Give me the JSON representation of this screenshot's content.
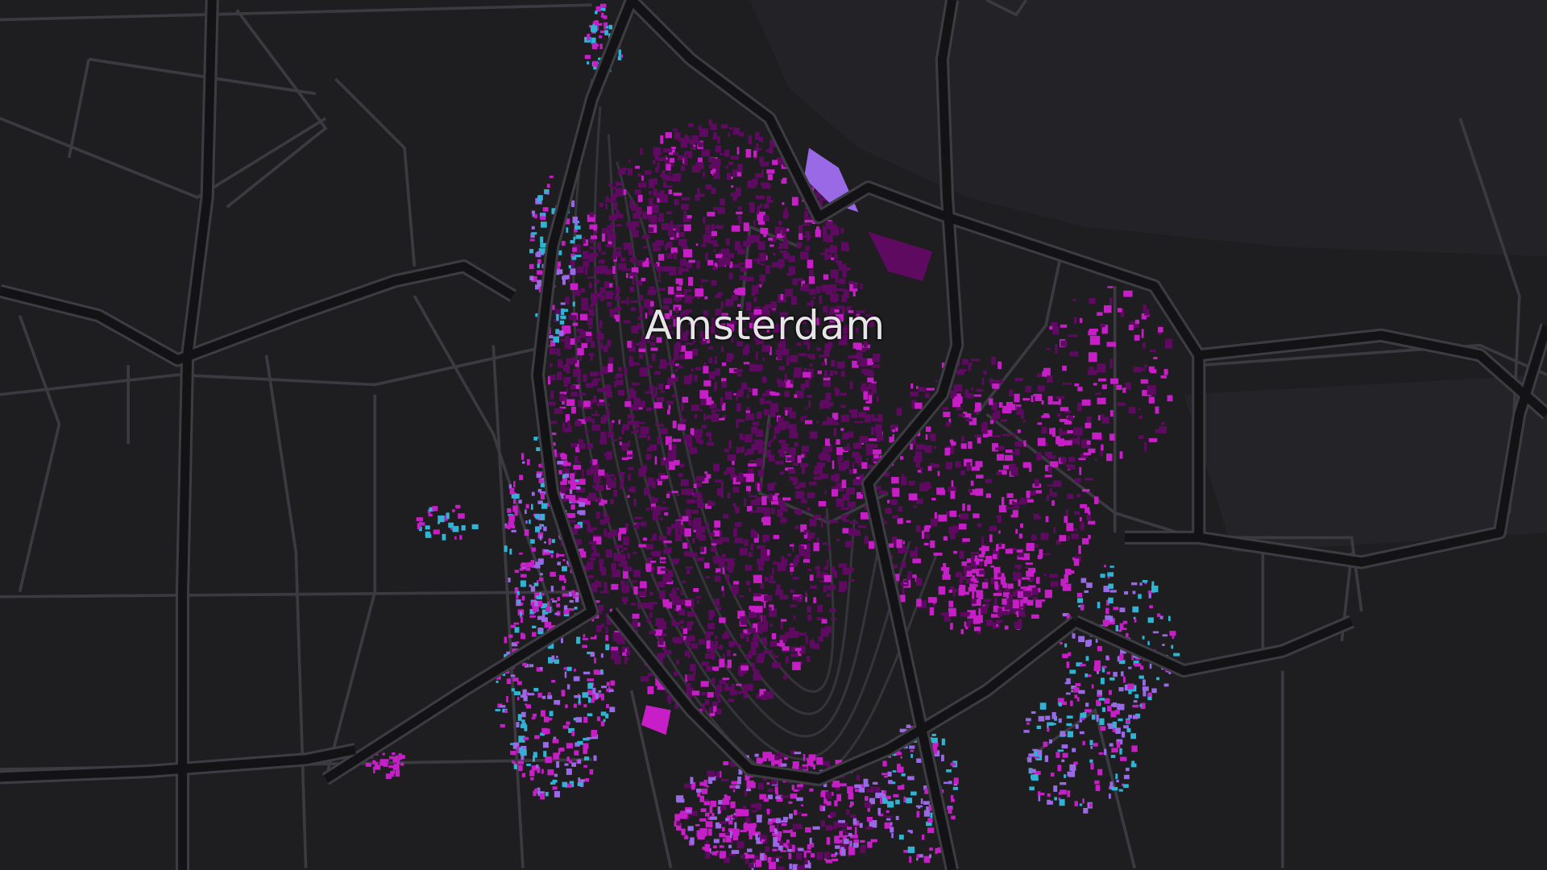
{
  "map": {
    "city_label": "Amsterdam",
    "style": "dark-basemap",
    "colors": {
      "background": "#1e1e21",
      "water": "#232326",
      "road_minor": "#3a3a40",
      "road_major_fill": "#131315",
      "road_major_edge": "#3c3c42",
      "building_magenta": "#c81ec8",
      "building_dark_purple": "#5e0a60",
      "building_cyan": "#2fb4d4",
      "building_lavender": "#9a6ae6"
    }
  }
}
